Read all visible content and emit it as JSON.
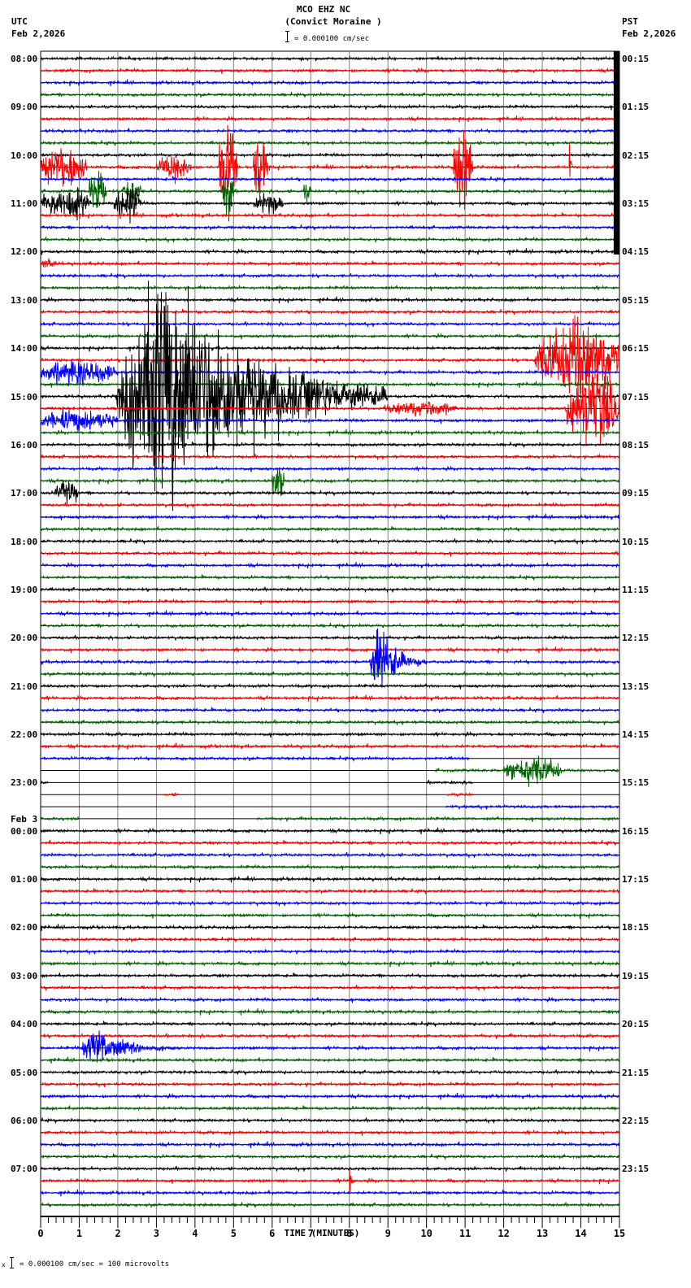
{
  "header": {
    "station": "MCO EHZ NC",
    "site": "(Convict Moraine )",
    "left_tz": "UTC",
    "left_date": "Feb 2,2026",
    "right_tz": "PST",
    "right_date": "Feb 2,2026",
    "scale_text": "= 0.000100 cm/sec"
  },
  "footer": {
    "scale_prefix": "x",
    "scale_text": "= 0.000100 cm/sec =     100 microvolts"
  },
  "chart_data": {
    "type": "line",
    "title": "MCO EHZ NC (Convict Moraine ) helicorder",
    "xlabel": "TIME (MINUTES)",
    "ylabel": "",
    "xlim": [
      0,
      15
    ],
    "x_ticks": [
      "0",
      "1",
      "2",
      "3",
      "4",
      "5",
      "6",
      "7",
      "8",
      "9",
      "10",
      "11",
      "12",
      "13",
      "14",
      "15"
    ],
    "minor_ticks_per_minute": 5,
    "grid": true,
    "trace_colors": [
      "#000000",
      "#ff0000",
      "#0000ff",
      "#006400"
    ],
    "traces_per_hour": 4,
    "minutes_per_trace": 15,
    "left_labels": [
      {
        "row": 0,
        "text": "08:00"
      },
      {
        "row": 4,
        "text": "09:00"
      },
      {
        "row": 8,
        "text": "10:00"
      },
      {
        "row": 12,
        "text": "11:00"
      },
      {
        "row": 16,
        "text": "12:00"
      },
      {
        "row": 20,
        "text": "13:00"
      },
      {
        "row": 24,
        "text": "14:00"
      },
      {
        "row": 28,
        "text": "15:00"
      },
      {
        "row": 32,
        "text": "16:00"
      },
      {
        "row": 36,
        "text": "17:00"
      },
      {
        "row": 40,
        "text": "18:00"
      },
      {
        "row": 44,
        "text": "19:00"
      },
      {
        "row": 48,
        "text": "20:00"
      },
      {
        "row": 52,
        "text": "21:00"
      },
      {
        "row": 56,
        "text": "22:00"
      },
      {
        "row": 60,
        "text": "23:00"
      },
      {
        "row": 64,
        "text": "00:00",
        "date": "Feb 3"
      },
      {
        "row": 68,
        "text": "01:00"
      },
      {
        "row": 72,
        "text": "02:00"
      },
      {
        "row": 76,
        "text": "03:00"
      },
      {
        "row": 80,
        "text": "04:00"
      },
      {
        "row": 84,
        "text": "05:00"
      },
      {
        "row": 88,
        "text": "06:00"
      },
      {
        "row": 92,
        "text": "07:00"
      }
    ],
    "right_labels": [
      {
        "row": 0,
        "text": "00:15"
      },
      {
        "row": 4,
        "text": "01:15"
      },
      {
        "row": 8,
        "text": "02:15"
      },
      {
        "row": 12,
        "text": "03:15"
      },
      {
        "row": 16,
        "text": "04:15"
      },
      {
        "row": 20,
        "text": "05:15"
      },
      {
        "row": 24,
        "text": "06:15"
      },
      {
        "row": 28,
        "text": "07:15"
      },
      {
        "row": 32,
        "text": "08:15"
      },
      {
        "row": 36,
        "text": "09:15"
      },
      {
        "row": 40,
        "text": "10:15"
      },
      {
        "row": 44,
        "text": "11:15"
      },
      {
        "row": 48,
        "text": "12:15"
      },
      {
        "row": 52,
        "text": "13:15"
      },
      {
        "row": 56,
        "text": "14:15"
      },
      {
        "row": 60,
        "text": "15:15"
      },
      {
        "row": 64,
        "text": "16:15"
      },
      {
        "row": 68,
        "text": "17:15"
      },
      {
        "row": 72,
        "text": "18:15"
      },
      {
        "row": 76,
        "text": "19:15"
      },
      {
        "row": 80,
        "text": "20:15"
      },
      {
        "row": 84,
        "text": "21:15"
      },
      {
        "row": 88,
        "text": "22:15"
      },
      {
        "row": 92,
        "text": "23:15"
      }
    ],
    "events": [
      {
        "row": 0,
        "t0": 14.85,
        "t1": 15.0,
        "amp": 60,
        "kind": "block",
        "note": "saturated data block at end of 08:00 trace through 12:00"
      },
      {
        "row": 9,
        "t0": 0.0,
        "t1": 1.2,
        "amp": 22,
        "kind": "burst"
      },
      {
        "row": 9,
        "t0": 3.0,
        "t1": 3.9,
        "amp": 14,
        "kind": "burst"
      },
      {
        "row": 9,
        "t0": 4.6,
        "t1": 5.1,
        "amp": 40,
        "kind": "burst"
      },
      {
        "row": 9,
        "t0": 5.5,
        "t1": 5.9,
        "amp": 35,
        "kind": "burst"
      },
      {
        "row": 9,
        "t0": 10.7,
        "t1": 11.2,
        "amp": 45,
        "kind": "burst"
      },
      {
        "row": 9,
        "t0": 13.7,
        "t1": 13.9,
        "amp": 40,
        "kind": "spike"
      },
      {
        "row": 11,
        "t0": 1.25,
        "t1": 1.7,
        "amp": 25,
        "kind": "burst"
      },
      {
        "row": 11,
        "t0": 2.1,
        "t1": 2.6,
        "amp": 15,
        "kind": "burst"
      },
      {
        "row": 11,
        "t0": 4.7,
        "t1": 5.0,
        "amp": 35,
        "kind": "burst"
      },
      {
        "row": 11,
        "t0": 6.8,
        "t1": 7.0,
        "amp": 10,
        "kind": "burst"
      },
      {
        "row": 12,
        "t0": 0.0,
        "t1": 1.3,
        "amp": 18,
        "kind": "burst"
      },
      {
        "row": 12,
        "t0": 1.9,
        "t1": 2.6,
        "amp": 20,
        "kind": "burst"
      },
      {
        "row": 12,
        "t0": 5.5,
        "t1": 6.3,
        "amp": 10,
        "kind": "burst"
      },
      {
        "row": 17,
        "t0": 0.0,
        "t1": 0.4,
        "amp": 6,
        "kind": "burst"
      },
      {
        "row": 26,
        "t0": 0.0,
        "t1": 2.0,
        "amp": 14,
        "kind": "burst"
      },
      {
        "row": 28,
        "t0": 1.9,
        "t1": 9.0,
        "amp": 140,
        "kind": "quake",
        "note": "large teleseism/local event"
      },
      {
        "row": 25,
        "t0": 12.8,
        "t1": 15.0,
        "amp": 40,
        "kind": "burst"
      },
      {
        "row": 29,
        "t0": 13.6,
        "t1": 15.0,
        "amp": 40,
        "kind": "burst"
      },
      {
        "row": 29,
        "t0": 8.9,
        "t1": 10.8,
        "amp": 8,
        "kind": "burst"
      },
      {
        "row": 30,
        "t0": 0.0,
        "t1": 2.0,
        "amp": 12,
        "kind": "burst"
      },
      {
        "row": 36,
        "t0": 0.35,
        "t1": 1.0,
        "amp": 12,
        "kind": "burst"
      },
      {
        "row": 35,
        "t0": 6.0,
        "t1": 6.3,
        "amp": 22,
        "kind": "burst"
      },
      {
        "row": 50,
        "t0": 8.5,
        "t1": 10.0,
        "amp": 40,
        "kind": "quake"
      },
      {
        "row": 59,
        "t0": 12.0,
        "t1": 13.5,
        "amp": 16,
        "kind": "burst"
      },
      {
        "row": 82,
        "t0": 1.0,
        "t1": 3.5,
        "amp": 22,
        "kind": "quake"
      },
      {
        "row": 93,
        "t0": 8.0,
        "t1": 8.2,
        "amp": 60,
        "kind": "spike"
      }
    ],
    "gaps": [
      {
        "row": 58,
        "t0": 11.1,
        "t1": 15.0
      },
      {
        "row": 59,
        "t0": 0.0,
        "t1": 10.2
      },
      {
        "row": 60,
        "t0": 0.2,
        "t1": 10.0
      },
      {
        "row": 60,
        "t0": 11.2,
        "t1": 15.0
      },
      {
        "row": 61,
        "t0": 0.0,
        "t1": 3.2
      },
      {
        "row": 61,
        "t0": 3.6,
        "t1": 10.5
      },
      {
        "row": 61,
        "t0": 11.2,
        "t1": 15.0
      },
      {
        "row": 62,
        "t0": 0.0,
        "t1": 10.5
      },
      {
        "row": 63,
        "t0": 1.0,
        "t1": 5.6
      }
    ]
  }
}
